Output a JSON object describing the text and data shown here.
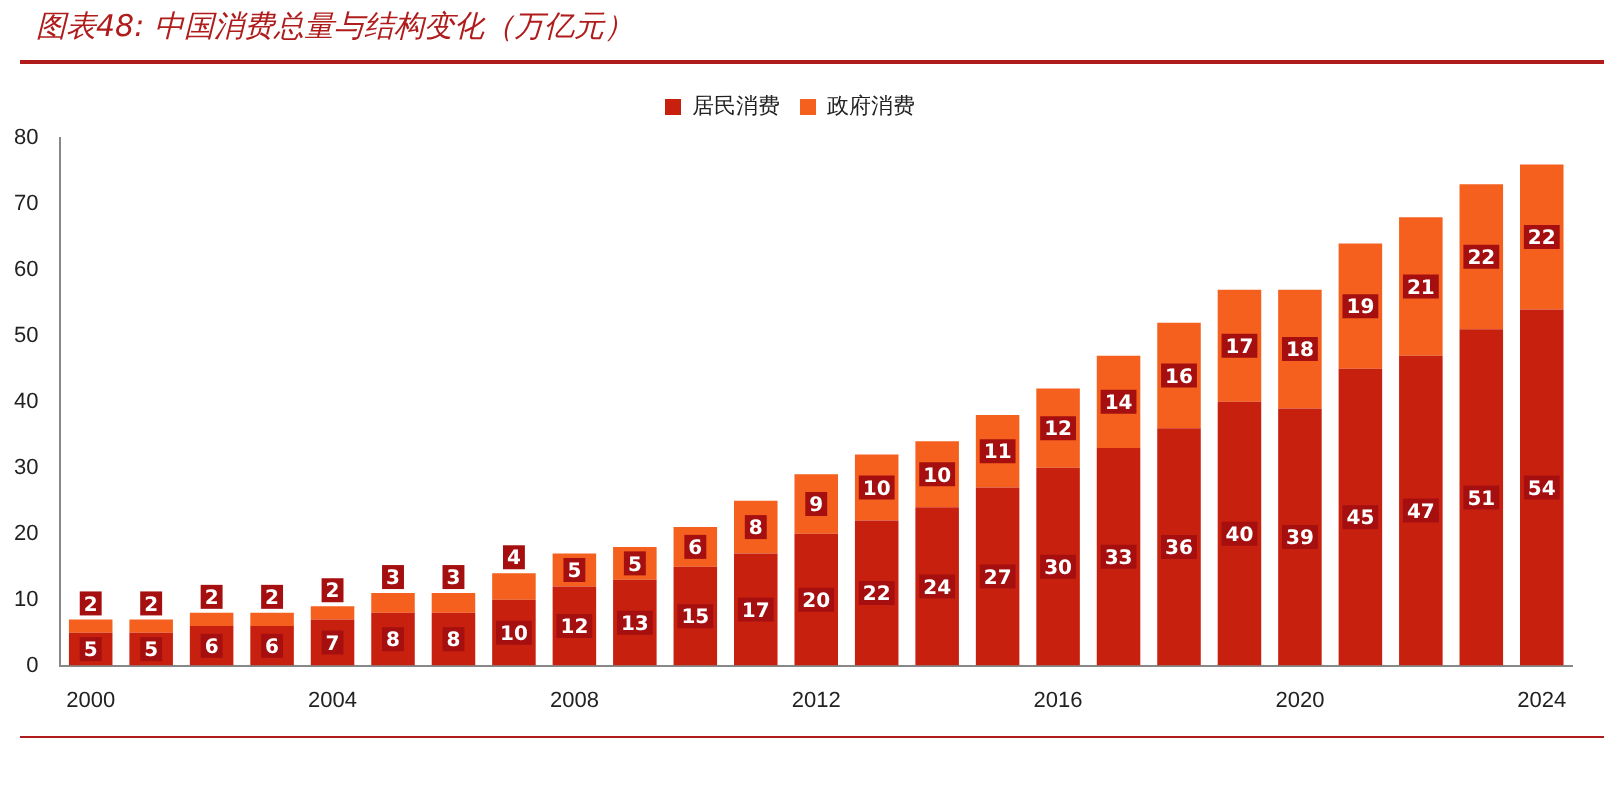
{
  "chart_data": {
    "type": "bar",
    "title": "图表48: 中国消费总量与结构变化（万亿元）",
    "categories": [
      "2000",
      null,
      null,
      null,
      "2004",
      null,
      null,
      null,
      "2008",
      null,
      null,
      null,
      "2012",
      null,
      null,
      null,
      "2016",
      null,
      null,
      null,
      "2020",
      null,
      null,
      null,
      "2024"
    ],
    "series": [
      {
        "name": "居民消费",
        "color": "#c8200e",
        "values": [
          5,
          5,
          6,
          6,
          7,
          8,
          8,
          10,
          12,
          13,
          15,
          17,
          20,
          22,
          24,
          27,
          30,
          33,
          36,
          40,
          39,
          45,
          47,
          51,
          54
        ]
      },
      {
        "name": "政府消费",
        "color": "#f5601e",
        "values": [
          2,
          2,
          2,
          2,
          2,
          3,
          3,
          4,
          5,
          5,
          6,
          8,
          9,
          10,
          10,
          11,
          12,
          14,
          16,
          17,
          18,
          19,
          21,
          22,
          22
        ]
      }
    ],
    "stacked": true,
    "ylim": [
      0,
      80
    ],
    "yticks": [
      0,
      10,
      20,
      30,
      40,
      50,
      60,
      70,
      80
    ],
    "grid": false,
    "legend": "top",
    "data_labels": true
  }
}
